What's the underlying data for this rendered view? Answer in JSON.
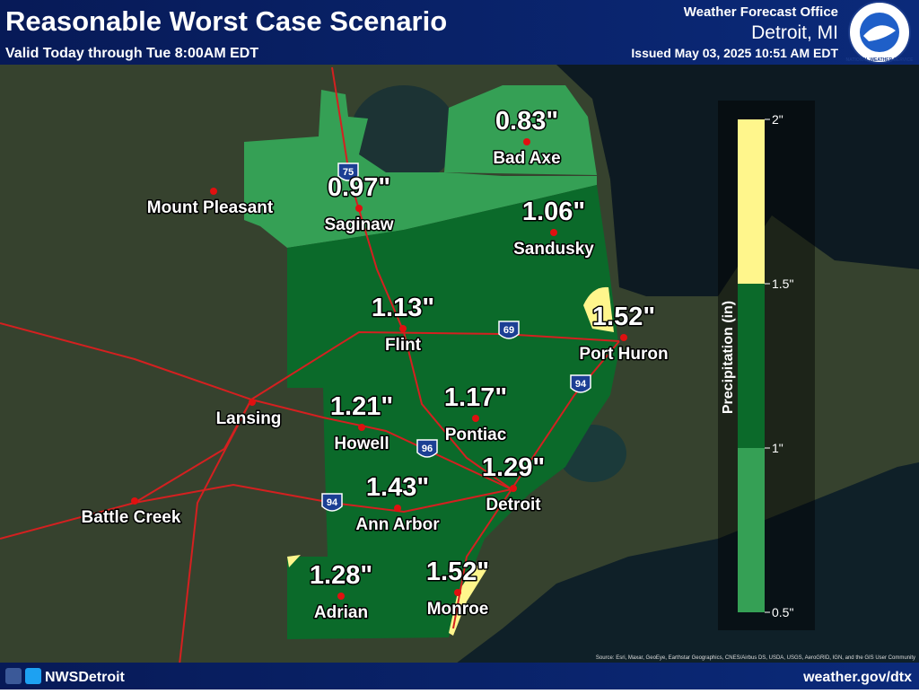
{
  "header": {
    "title": "Reasonable Worst Case Scenario",
    "subtitle": "Valid Today through Tue 8:00AM EDT",
    "office": "Weather Forecast Office",
    "location": "Detroit, MI",
    "issued": "Issued May 03, 2025 10:51 AM EDT",
    "logo_text": "NATIONAL WEATHER SERVICE"
  },
  "cities": [
    {
      "label": "Bad Axe",
      "value": "0.83\""
    },
    {
      "label": "Saginaw",
      "value": "0.97\""
    },
    {
      "label": "Sandusky",
      "value": "1.06\""
    },
    {
      "label": "Flint",
      "value": "1.13\""
    },
    {
      "label": "Port Huron",
      "value": "1.52\""
    },
    {
      "label": "Pontiac",
      "value": "1.17\""
    },
    {
      "label": "Howell",
      "value": "1.21\""
    },
    {
      "label": "Detroit",
      "value": "1.29\""
    },
    {
      "label": "Ann Arbor",
      "value": "1.43\""
    },
    {
      "label": "Adrian",
      "value": "1.28\""
    },
    {
      "label": "Monroe",
      "value": "1.52\""
    },
    {
      "label": "Mount Pleasant"
    },
    {
      "label": "Lansing"
    },
    {
      "label": "Battle Creek"
    }
  ],
  "interstates": [
    "75",
    "69",
    "94",
    "96",
    "94"
  ],
  "legend": {
    "title": "Precipitation (in)",
    "ticks": [
      {
        "value": 0.5,
        "label": "0.5\""
      },
      {
        "value": 1,
        "label": "1\""
      },
      {
        "value": 1.5,
        "label": "1.5\""
      },
      {
        "value": 2,
        "label": "2\""
      }
    ],
    "colors": [
      "#35a055",
      "#0b6a2a",
      "#fff68c"
    ]
  },
  "footer": {
    "social": "NWSDetroit",
    "website": "weather.gov/dtx",
    "credit": "Source: Esri, Maxar, GeoEye, Earthstar Geographics, CNES/Airbus DS, USDA, USGS, AeroGRID, IGN, and the GIS User Community"
  }
}
